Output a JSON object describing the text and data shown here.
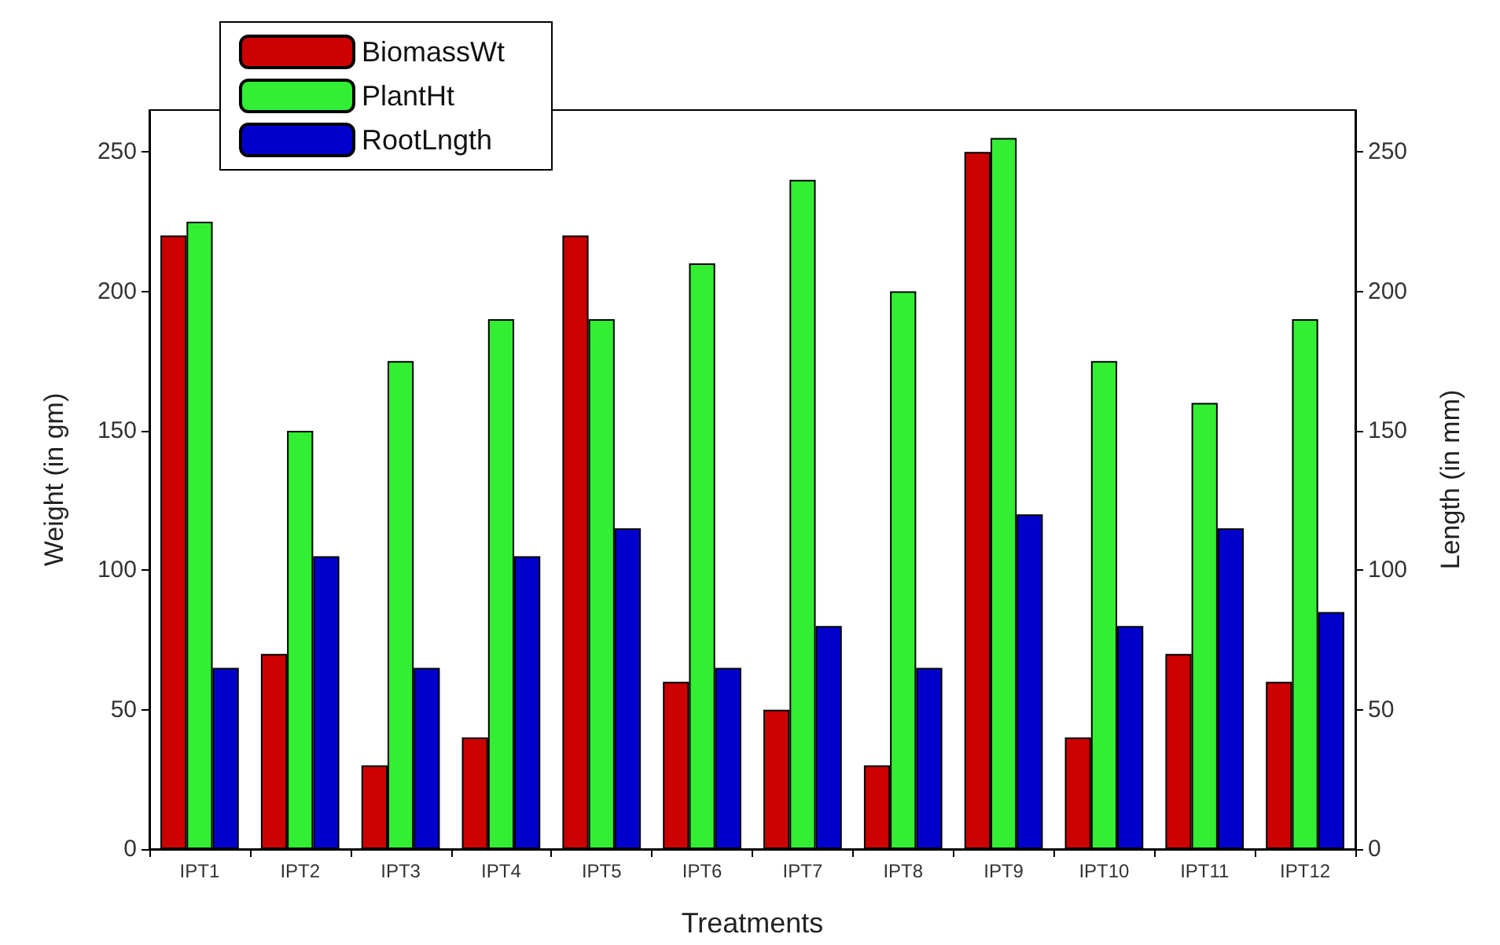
{
  "chart_data": {
    "type": "bar",
    "xlabel": "Treatments",
    "ylabel": "Weight (in gm)",
    "y2label": "Length (in mm)",
    "categories": [
      "IPT1",
      "IPT2",
      "IPT3",
      "IPT4",
      "IPT5",
      "IPT6",
      "IPT7",
      "IPT8",
      "IPT9",
      "IPT10",
      "IPT11",
      "IPT12"
    ],
    "series": [
      {
        "name": "BiomassWt",
        "color": "#cc0000",
        "values": [
          220,
          70,
          30,
          40,
          220,
          60,
          50,
          30,
          250,
          40,
          70,
          60
        ]
      },
      {
        "name": "PlantHt",
        "color": "#33ee33",
        "values": [
          225,
          150,
          175,
          190,
          190,
          210,
          240,
          200,
          255,
          175,
          160,
          190
        ]
      },
      {
        "name": "RootLngth",
        "color": "#0000cc",
        "values": [
          65,
          105,
          65,
          105,
          115,
          65,
          80,
          65,
          120,
          80,
          115,
          85
        ]
      }
    ],
    "ylim": [
      0,
      265
    ],
    "yticks": [
      0,
      50,
      100,
      150,
      200,
      250
    ],
    "y2lim": [
      0,
      265
    ],
    "y2ticks": [
      0,
      50,
      100,
      150,
      200,
      250
    ],
    "legend": "top left",
    "grid": false
  }
}
